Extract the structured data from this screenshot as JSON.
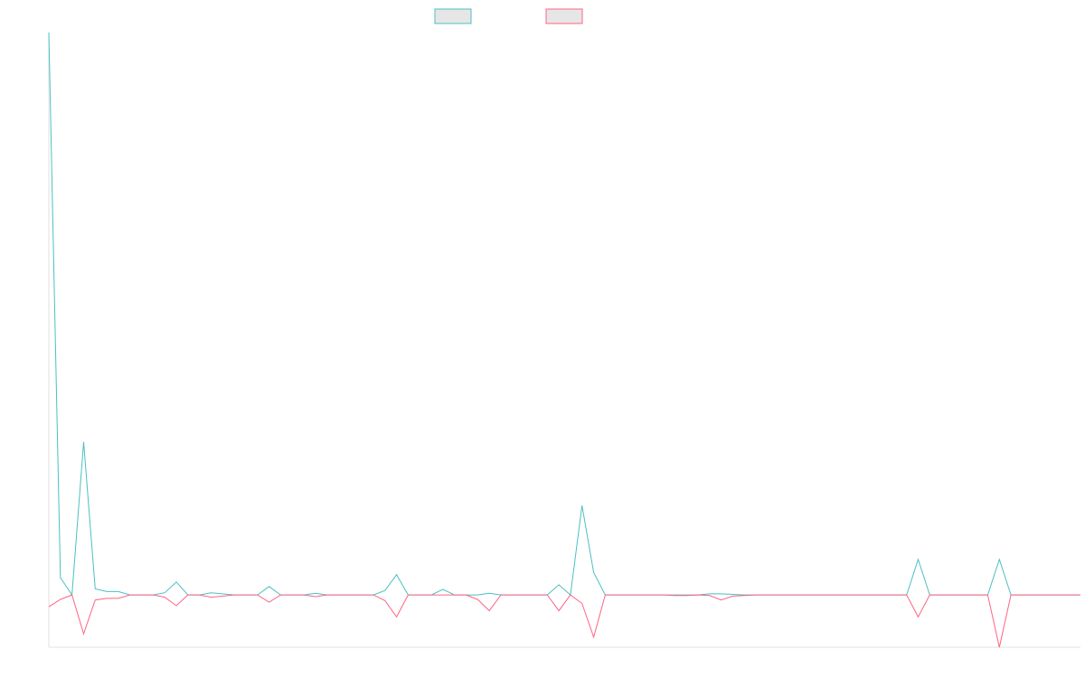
{
  "chart_data": {
    "type": "line",
    "title": "",
    "xlabel": "",
    "ylabel": "",
    "grid": false,
    "legend_position": "top-center",
    "x": [
      0,
      1,
      2,
      3,
      4,
      5,
      6,
      7,
      8,
      9,
      10,
      11,
      12,
      13,
      14,
      15,
      16,
      17,
      18,
      19,
      20,
      21,
      22,
      23,
      24,
      25,
      26,
      27,
      28,
      29,
      30,
      31,
      32,
      33,
      34,
      35,
      36,
      37,
      38,
      39,
      40,
      41,
      42,
      43,
      44,
      45,
      46,
      47,
      48,
      49,
      50,
      51,
      52,
      53,
      54,
      55,
      56,
      57,
      58,
      59,
      60,
      61,
      62,
      63,
      64,
      65,
      66,
      67,
      68,
      69,
      70,
      71,
      72,
      73,
      74,
      75,
      76,
      77,
      78,
      79,
      80,
      81,
      82,
      83,
      84,
      85,
      86,
      87,
      88,
      89
    ],
    "ylim": [
      -0.093,
      1.0
    ],
    "series": [
      {
        "color": "#4bc0c0",
        "values": [
          1.0,
          0.031,
          0,
          0.272,
          0.011,
          0.006,
          0.006,
          0,
          0,
          0,
          0.004,
          0.023,
          0,
          0,
          0.004,
          0.002,
          0,
          0,
          0,
          0.015,
          0,
          0,
          0,
          0.003,
          0,
          0,
          0,
          0,
          0,
          0.008,
          0.036,
          0,
          0,
          0,
          0.01,
          0,
          0,
          0,
          0.003,
          0,
          0,
          0,
          0,
          0,
          0.018,
          0,
          0.159,
          0.04,
          0,
          0,
          0,
          0,
          0,
          0,
          0,
          0,
          0,
          0.002,
          0.002,
          0.001,
          0,
          0,
          0,
          0,
          0,
          0,
          0,
          0,
          0,
          0,
          0,
          0,
          0,
          0,
          0,
          0.063,
          0,
          0,
          0,
          0,
          0,
          0,
          0.063,
          0,
          0,
          0,
          0,
          0,
          0,
          0
        ]
      },
      {
        "color": "#ff6384",
        "values": [
          -0.021,
          -0.008,
          0,
          -0.069,
          -0.009,
          -0.006,
          -0.006,
          0,
          0,
          0,
          -0.004,
          -0.019,
          0,
          0,
          -0.004,
          -0.002,
          0,
          0,
          0,
          -0.013,
          0,
          0,
          0,
          -0.003,
          0,
          0,
          0,
          0,
          0,
          -0.01,
          -0.039,
          0,
          0,
          0,
          0,
          0,
          0,
          -0.008,
          -0.028,
          0,
          0,
          0,
          0,
          0,
          -0.028,
          0,
          -0.015,
          -0.075,
          0,
          0,
          0,
          0,
          0,
          0,
          -0.001,
          -0.001,
          0,
          -0.001,
          -0.009,
          -0.002,
          -0.001,
          0,
          0,
          0,
          0,
          0,
          0,
          0,
          0,
          0,
          0,
          0,
          0,
          0,
          0,
          -0.039,
          0,
          0,
          0,
          0,
          0,
          0,
          -0.093,
          0,
          0,
          0,
          0,
          0,
          0,
          0
        ]
      }
    ]
  }
}
